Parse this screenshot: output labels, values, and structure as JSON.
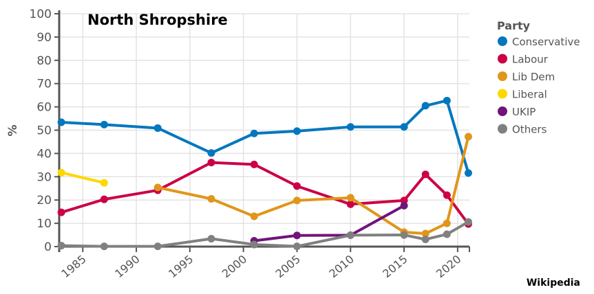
{
  "chart_data": {
    "type": "line",
    "title": "North Shropshire",
    "xlabel": "",
    "ylabel": "%",
    "ylim": [
      0,
      100
    ],
    "xlim": [
      1982.8,
      2021.1
    ],
    "yticks": [
      0,
      10,
      20,
      30,
      40,
      50,
      60,
      70,
      80,
      90,
      100
    ],
    "xticks": [
      1985,
      1990,
      1995,
      2000,
      2005,
      2010,
      2015,
      2020
    ],
    "grid": true,
    "legend_title": "Party",
    "legend_position": "right",
    "series": [
      {
        "name": "Conservative",
        "color": "#0077bf",
        "x": [
          1983,
          1987,
          1992,
          1997,
          2001,
          2005,
          2010,
          2015,
          2017,
          2019,
          2021
        ],
        "y": [
          53.4,
          52.4,
          50.9,
          40.2,
          48.6,
          49.6,
          51.4,
          51.4,
          60.5,
          62.7,
          31.6
        ]
      },
      {
        "name": "Labour",
        "color": "#cc0044",
        "x": [
          1983,
          1987,
          1992,
          1997,
          2001,
          2005,
          2010,
          2015,
          2017,
          2019,
          2021
        ],
        "y": [
          14.7,
          20.3,
          24.2,
          36.1,
          35.3,
          26.0,
          18.2,
          19.8,
          31.0,
          22.1,
          9.7
        ]
      },
      {
        "name": "Lib Dem",
        "color": "#e0961a",
        "x": [
          1992,
          1997,
          2001,
          2005,
          2010,
          2015,
          2017,
          2019,
          2021
        ],
        "y": [
          25.4,
          20.5,
          13.0,
          19.8,
          21.0,
          6.2,
          5.6,
          10.0,
          47.2
        ]
      },
      {
        "name": "Liberal",
        "color": "#ffd700",
        "x": [
          1983,
          1987
        ],
        "y": [
          31.8,
          27.4
        ]
      },
      {
        "name": "UKIP",
        "color": "#70147a",
        "x": [
          2001,
          2005,
          2010,
          2015
        ],
        "y": [
          2.5,
          4.8,
          4.9,
          17.6
        ]
      },
      {
        "name": "Others",
        "color": "#808080",
        "x": [
          1983,
          1987,
          1992,
          1997,
          2001,
          2005,
          2010,
          2015,
          2017,
          2019,
          2021
        ],
        "y": [
          0.4,
          0.1,
          0.1,
          3.4,
          0.9,
          0.1,
          4.9,
          5.0,
          3.1,
          5.3,
          10.6
        ]
      }
    ]
  },
  "footer": {
    "source": "Wikipedia"
  }
}
